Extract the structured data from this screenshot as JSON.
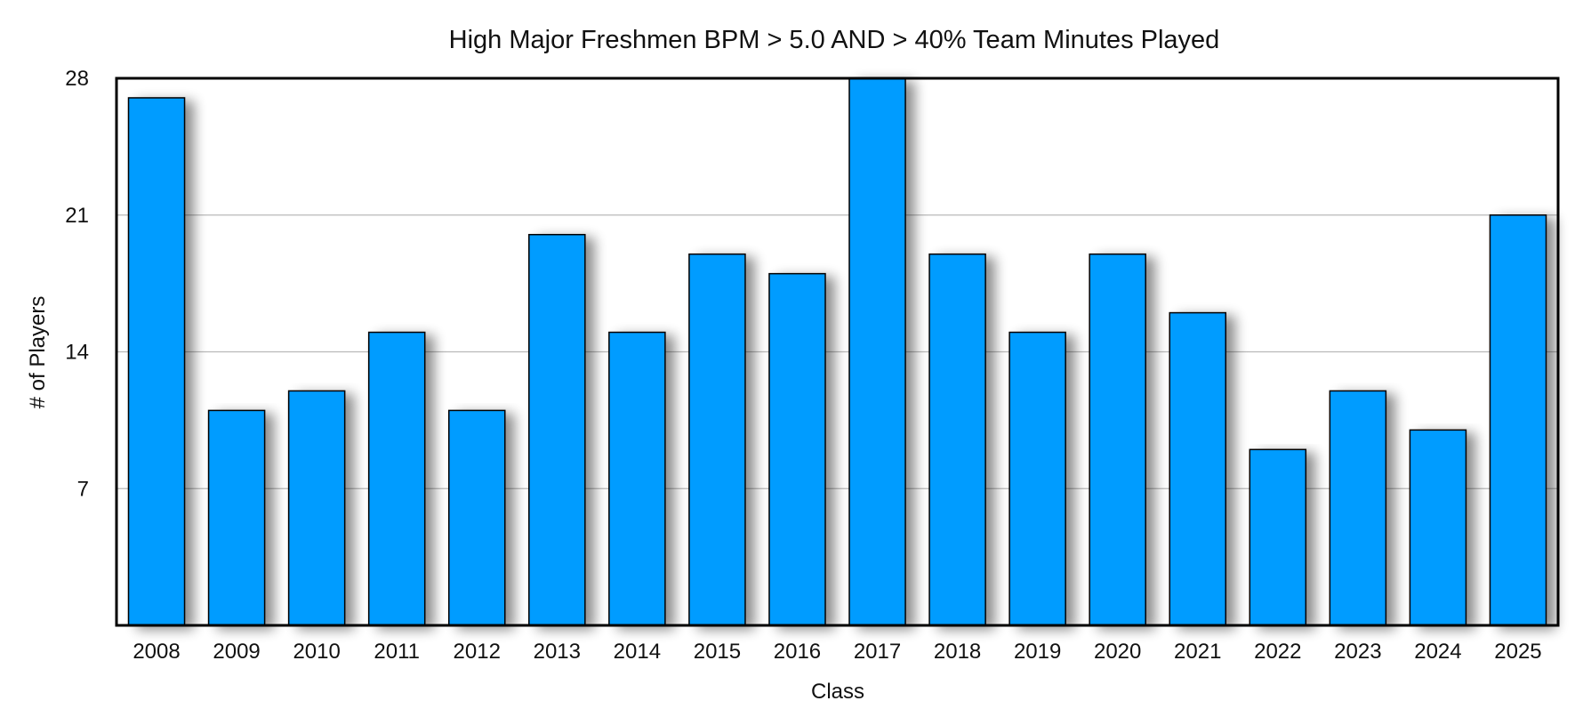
{
  "chart_data": {
    "type": "bar",
    "title": "High Major Freshmen BPM > 5.0  AND > 40% Team Minutes Played",
    "xlabel": "Class",
    "ylabel": "# of Players",
    "categories": [
      "2008",
      "2009",
      "2010",
      "2011",
      "2012",
      "2013",
      "2014",
      "2015",
      "2016",
      "2017",
      "2018",
      "2019",
      "2020",
      "2021",
      "2022",
      "2023",
      "2024",
      "2025"
    ],
    "values": [
      27,
      11,
      12,
      15,
      11,
      20,
      15,
      19,
      18,
      28,
      19,
      15,
      19,
      16,
      9,
      12,
      10,
      21
    ],
    "ylim": [
      0,
      28
    ],
    "yticks": [
      7,
      14,
      21,
      28
    ],
    "grid": true,
    "legend": "none",
    "colors": {
      "bar": "#009cff",
      "bar_stroke": "#000000",
      "grid": "#b9b9b9",
      "frame": "#000000"
    }
  }
}
